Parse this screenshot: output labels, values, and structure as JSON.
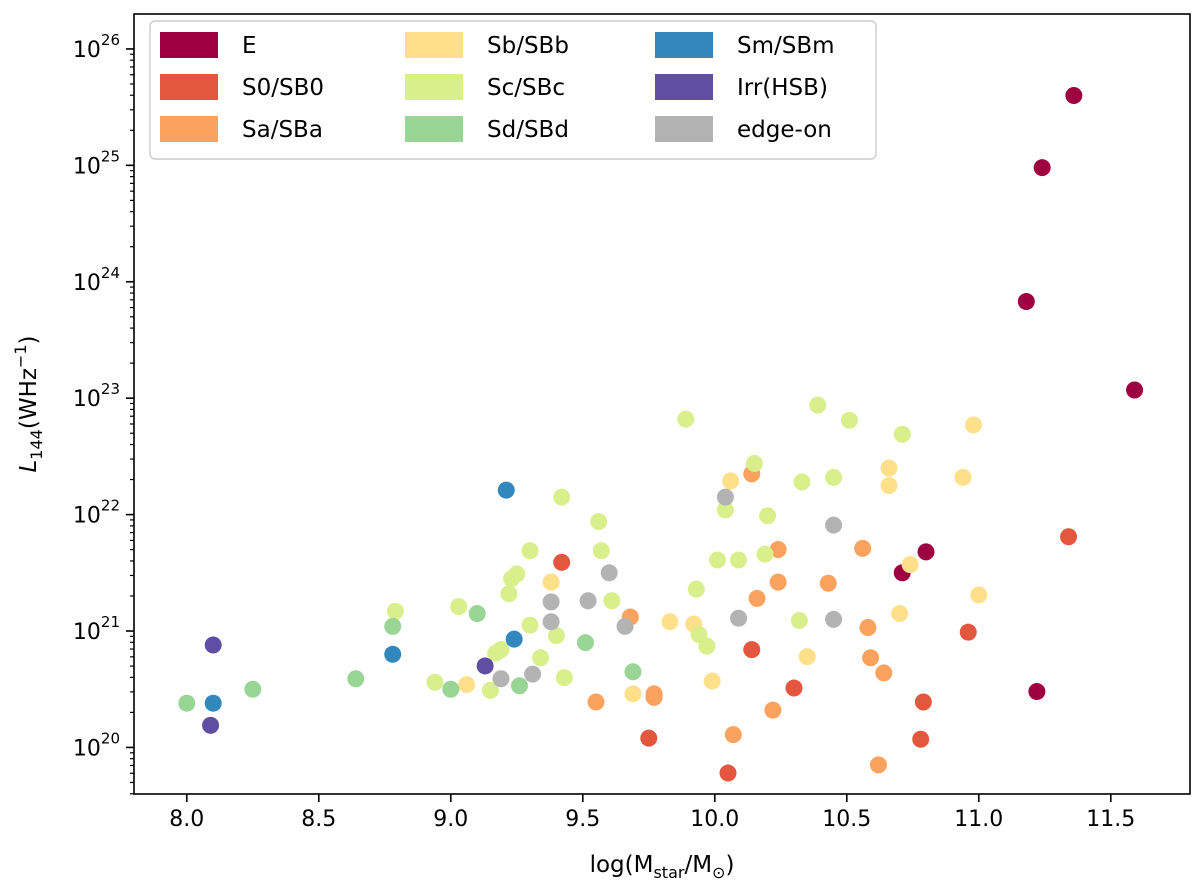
{
  "chart_data": {
    "type": "scatter",
    "title": "",
    "xlabel": "log(Mstar/M⊙)",
    "ylabel": "L144(WHz−1)",
    "xlim": [
      7.8,
      11.8
    ],
    "ylim_log10": [
      19.6,
      26.3
    ],
    "y_scale": "log",
    "grid": false,
    "legend_position": "top-left",
    "x_ticks": [
      {
        "value": 8.0,
        "label": "8.0"
      },
      {
        "value": 8.5,
        "label": "8.5"
      },
      {
        "value": 9.0,
        "label": "9.0"
      },
      {
        "value": 9.5,
        "label": "9.5"
      },
      {
        "value": 10.0,
        "label": "10.0"
      },
      {
        "value": 10.5,
        "label": "10.5"
      },
      {
        "value": 11.0,
        "label": "11.0"
      },
      {
        "value": 11.5,
        "label": "11.5"
      }
    ],
    "y_ticks": [
      {
        "exp": 20,
        "base": "10",
        "sup": "20"
      },
      {
        "exp": 21,
        "base": "10",
        "sup": "21"
      },
      {
        "exp": 22,
        "base": "10",
        "sup": "22"
      },
      {
        "exp": 23,
        "base": "10",
        "sup": "23"
      },
      {
        "exp": 24,
        "base": "10",
        "sup": "24"
      },
      {
        "exp": 25,
        "base": "10",
        "sup": "25"
      },
      {
        "exp": 26,
        "base": "10",
        "sup": "26"
      }
    ],
    "series": [
      {
        "name": "E",
        "color": "#9e0142",
        "points": [
          [
            11.36,
            25.6
          ],
          [
            11.24,
            24.98
          ],
          [
            11.18,
            23.83
          ],
          [
            11.59,
            23.07
          ],
          [
            10.8,
            21.68
          ],
          [
            10.71,
            21.5
          ],
          [
            11.22,
            20.48
          ]
        ]
      },
      {
        "name": "S0/SB0",
        "color": "#e4573f",
        "points": [
          [
            9.42,
            21.59
          ],
          [
            10.14,
            20.84
          ],
          [
            10.96,
            20.99
          ],
          [
            11.34,
            21.81
          ],
          [
            10.3,
            20.51
          ],
          [
            10.79,
            20.39
          ],
          [
            9.75,
            20.08
          ],
          [
            10.78,
            20.07
          ],
          [
            10.05,
            19.78
          ]
        ]
      },
      {
        "name": "Sa/SBa",
        "color": "#fba35e",
        "points": [
          [
            10.14,
            22.35
          ],
          [
            10.24,
            21.7
          ],
          [
            10.56,
            21.71
          ],
          [
            10.24,
            21.42
          ],
          [
            10.43,
            21.41
          ],
          [
            10.16,
            21.28
          ],
          [
            9.68,
            21.12
          ],
          [
            10.58,
            21.03
          ],
          [
            10.59,
            20.77
          ],
          [
            10.64,
            20.64
          ],
          [
            9.77,
            20.46
          ],
          [
            9.77,
            20.43
          ],
          [
            9.55,
            20.39
          ],
          [
            10.22,
            20.32
          ],
          [
            10.07,
            20.11
          ],
          [
            10.62,
            19.85
          ]
        ]
      },
      {
        "name": "Sb/SBb",
        "color": "#fee08b",
        "points": [
          [
            10.98,
            22.77
          ],
          [
            10.66,
            22.4
          ],
          [
            10.06,
            22.29
          ],
          [
            10.66,
            22.25
          ],
          [
            10.94,
            22.32
          ],
          [
            9.38,
            21.42
          ],
          [
            10.74,
            21.57
          ],
          [
            11.0,
            21.31
          ],
          [
            10.7,
            21.15
          ],
          [
            9.83,
            21.08
          ],
          [
            9.92,
            21.06
          ],
          [
            10.35,
            20.78
          ],
          [
            9.06,
            20.54
          ],
          [
            9.99,
            20.57
          ],
          [
            9.69,
            20.46
          ]
        ]
      },
      {
        "name": "Sc/SBc",
        "color": "#d9ef8b",
        "points": [
          [
            10.39,
            22.94
          ],
          [
            9.89,
            22.82
          ],
          [
            10.51,
            22.81
          ],
          [
            10.71,
            22.69
          ],
          [
            10.15,
            22.44
          ],
          [
            10.33,
            22.28
          ],
          [
            10.45,
            22.32
          ],
          [
            9.42,
            22.15
          ],
          [
            10.04,
            22.04
          ],
          [
            9.56,
            21.94
          ],
          [
            10.2,
            21.99
          ],
          [
            9.3,
            21.69
          ],
          [
            9.57,
            21.69
          ],
          [
            10.19,
            21.66
          ],
          [
            10.09,
            21.61
          ],
          [
            10.01,
            21.61
          ],
          [
            9.25,
            21.49
          ],
          [
            9.23,
            21.45
          ],
          [
            9.22,
            21.32
          ],
          [
            9.93,
            21.36
          ],
          [
            9.61,
            21.26
          ],
          [
            8.79,
            21.17
          ],
          [
            9.03,
            21.21
          ],
          [
            9.3,
            21.05
          ],
          [
            10.32,
            21.09
          ],
          [
            9.4,
            20.96
          ],
          [
            9.94,
            20.97
          ],
          [
            9.97,
            20.87
          ],
          [
            9.19,
            20.84
          ],
          [
            9.17,
            20.81
          ],
          [
            9.34,
            20.77
          ],
          [
            9.43,
            20.6
          ],
          [
            8.94,
            20.56
          ],
          [
            9.15,
            20.49
          ]
        ]
      },
      {
        "name": "Sd/SBd",
        "color": "#99d594",
        "points": [
          [
            9.1,
            21.15
          ],
          [
            8.78,
            21.04
          ],
          [
            9.51,
            20.9
          ],
          [
            8.64,
            20.59
          ],
          [
            9.69,
            20.65
          ],
          [
            9.0,
            20.5
          ],
          [
            9.26,
            20.53
          ],
          [
            8.25,
            20.5
          ],
          [
            8.0,
            20.38
          ]
        ]
      },
      {
        "name": "Sm/SBm",
        "color": "#3288bd",
        "points": [
          [
            9.21,
            22.21
          ],
          [
            9.24,
            20.93
          ],
          [
            8.78,
            20.8
          ],
          [
            8.1,
            20.38
          ]
        ]
      },
      {
        "name": "Irr(HSB)",
        "color": "#5e4fa2",
        "points": [
          [
            8.1,
            20.88
          ],
          [
            9.13,
            20.7
          ],
          [
            8.09,
            20.19
          ]
        ]
      },
      {
        "name": "edge-on",
        "color": "#b3b3b3",
        "points": [
          [
            10.04,
            22.15
          ],
          [
            10.45,
            21.91
          ],
          [
            9.6,
            21.5
          ],
          [
            9.38,
            21.25
          ],
          [
            9.52,
            21.26
          ],
          [
            10.45,
            21.1
          ],
          [
            9.38,
            21.08
          ],
          [
            10.09,
            21.11
          ],
          [
            9.66,
            21.04
          ],
          [
            9.31,
            20.63
          ],
          [
            9.19,
            20.59
          ]
        ]
      }
    ],
    "legend_columns": [
      [
        "E",
        "S0/SB0",
        "Sa/SBa"
      ],
      [
        "Sb/SBb",
        "Sc/SBc",
        "Sd/SBd"
      ],
      [
        "Sm/SBm",
        "Irr(HSB)",
        "edge-on"
      ]
    ]
  }
}
